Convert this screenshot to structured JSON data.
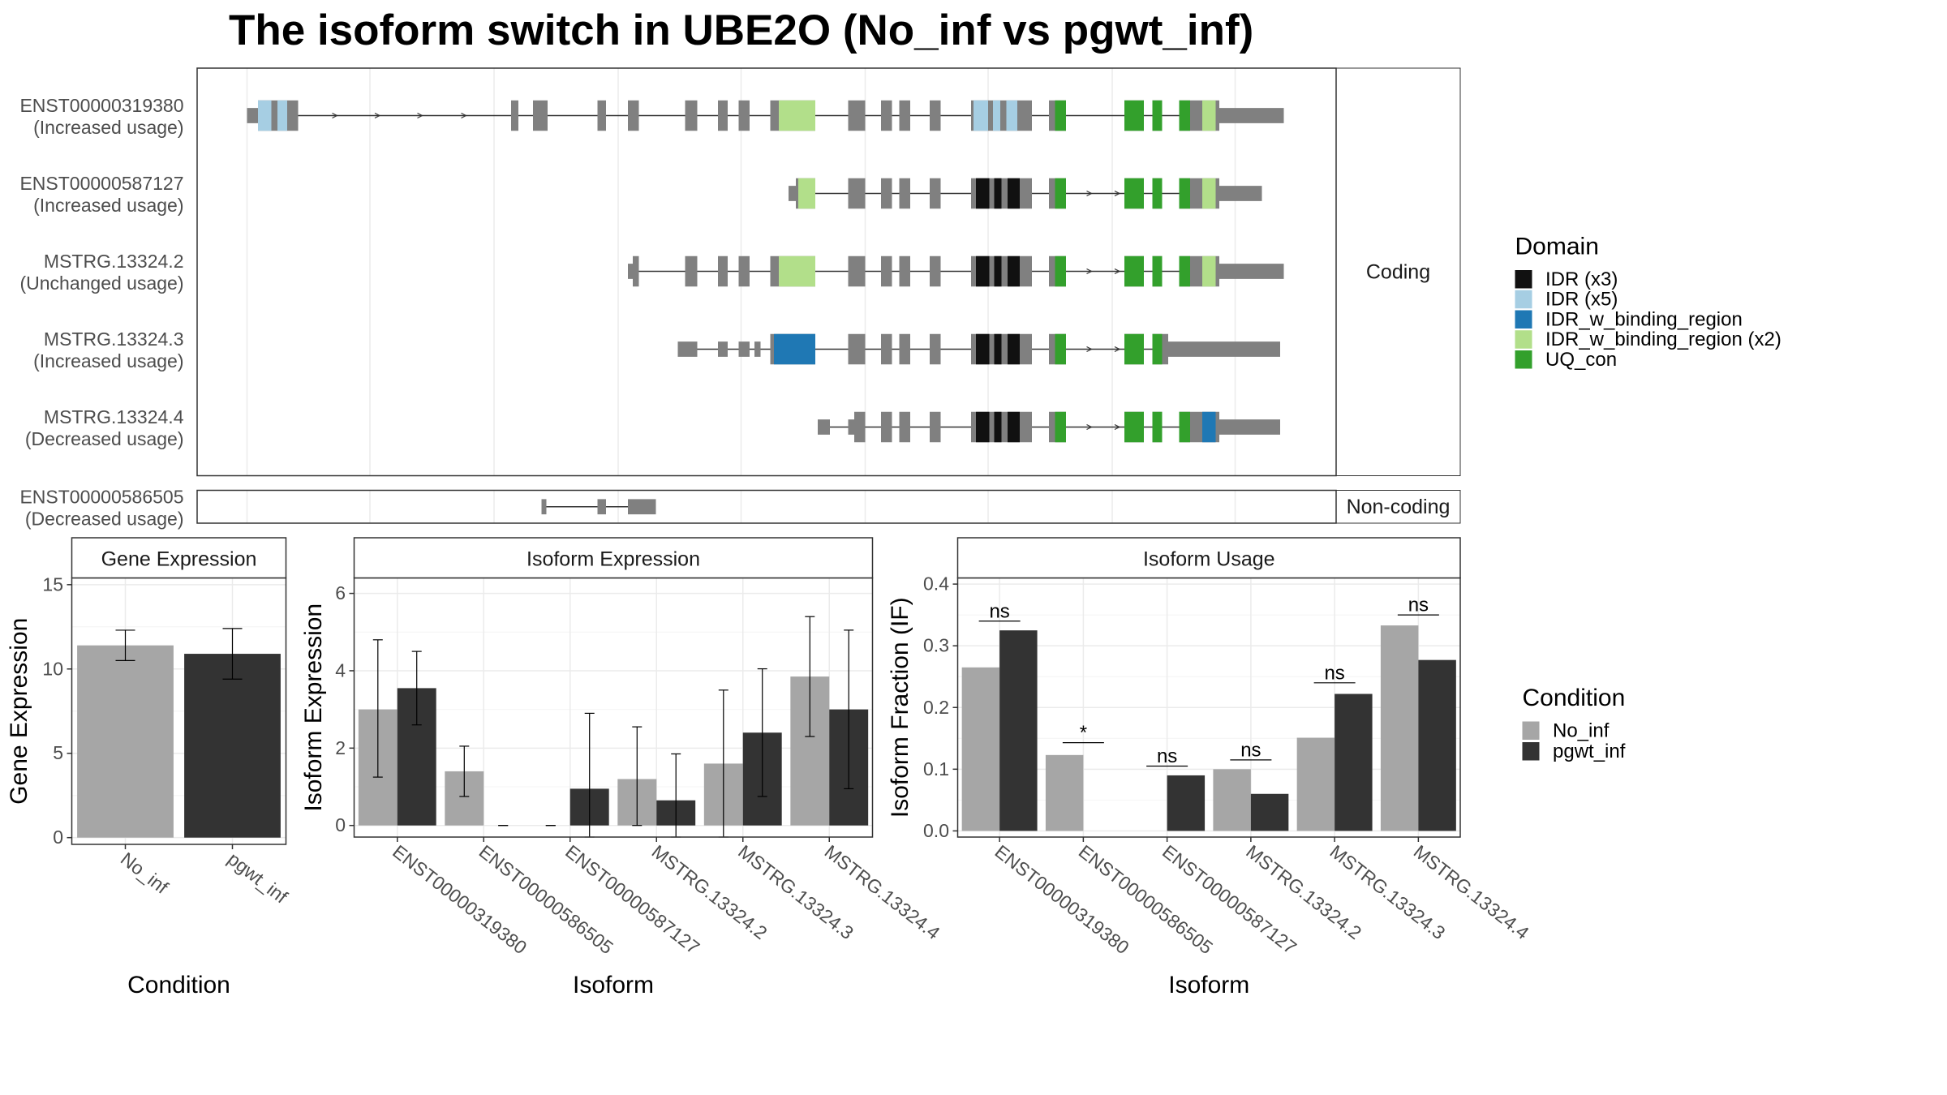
{
  "title": "The isoform switch in UBE2O (No_inf vs pgwt_inf)",
  "colors": {
    "grid": "#ebebeb",
    "feature_gray": "#808080",
    "No_inf": "#a6a6a6",
    "pgwt_inf": "#333333",
    "IDR (x3)": "#111111",
    "IDR (x5)": "#a6cee3",
    "IDR_w_binding_region": "#1f78b4",
    "IDR_w_binding_region (x2)": "#b2df8a",
    "UQ_con": "#33a02c"
  },
  "structure": {
    "coding_label": "Coding",
    "noncoding_label": "Non-coding",
    "coding": [
      {
        "id": "ENST00000319380",
        "usage": "(Increased usage)",
        "exons": [
          [
            203,
            212,
            "u"
          ],
          [
            212,
            245,
            "c"
          ],
          [
            420,
            426,
            "c"
          ],
          [
            438,
            450,
            "c"
          ],
          [
            491,
            498,
            "c"
          ],
          [
            516,
            525,
            "c"
          ],
          [
            563,
            573,
            "c"
          ],
          [
            590,
            598,
            "c"
          ],
          [
            607,
            616,
            "c"
          ],
          [
            633,
            640,
            "c"
          ],
          [
            640,
            670,
            "c"
          ],
          [
            697,
            711,
            "c"
          ],
          [
            724,
            733,
            "c"
          ],
          [
            739,
            748,
            "c"
          ],
          [
            764,
            773,
            "c"
          ],
          [
            798,
            848,
            "c"
          ],
          [
            862,
            876,
            "c"
          ],
          [
            924,
            940,
            "c"
          ],
          [
            947,
            955,
            "c"
          ],
          [
            969,
            1002,
            "c"
          ],
          [
            1002,
            1055,
            "u"
          ]
        ],
        "domains": [
          [
            212,
            223,
            "IDR (x5)"
          ],
          [
            228,
            236,
            "IDR (x5)"
          ],
          [
            640,
            670,
            "IDR_w_binding_region (x2)"
          ],
          [
            800,
            812,
            "IDR (x5)"
          ],
          [
            816,
            822,
            "IDR (x5)"
          ],
          [
            827,
            836,
            "IDR (x5)"
          ],
          [
            867,
            876,
            "UQ_con"
          ],
          [
            924,
            940,
            "UQ_con"
          ],
          [
            947,
            955,
            "UQ_con"
          ],
          [
            969,
            978,
            "UQ_con"
          ],
          [
            988,
            999,
            "IDR_w_binding_region (x2)"
          ]
        ],
        "arrows": [
          277,
          312,
          347,
          383
        ]
      },
      {
        "id": "ENST00000587127",
        "usage": "(Increased usage)",
        "exons": [
          [
            648,
            654,
            "u"
          ],
          [
            654,
            670,
            "c"
          ],
          [
            697,
            711,
            "c"
          ],
          [
            724,
            733,
            "c"
          ],
          [
            739,
            748,
            "c"
          ],
          [
            764,
            773,
            "c"
          ],
          [
            798,
            848,
            "c"
          ],
          [
            862,
            876,
            "c"
          ],
          [
            924,
            940,
            "c"
          ],
          [
            947,
            955,
            "c"
          ],
          [
            969,
            1002,
            "c"
          ],
          [
            1002,
            1037,
            "u"
          ]
        ],
        "domains": [
          [
            656,
            670,
            "IDR_w_binding_region (x2)"
          ],
          [
            802,
            813,
            "IDR (x3)"
          ],
          [
            817,
            823,
            "IDR (x3)"
          ],
          [
            828,
            838,
            "IDR (x3)"
          ],
          [
            867,
            876,
            "UQ_con"
          ],
          [
            924,
            940,
            "UQ_con"
          ],
          [
            947,
            955,
            "UQ_con"
          ],
          [
            969,
            978,
            "UQ_con"
          ],
          [
            988,
            999,
            "IDR_w_binding_region (x2)"
          ]
        ],
        "arrows": [
          897,
          920
        ]
      },
      {
        "id": "MSTRG.13324.2",
        "usage": "(Unchanged usage)",
        "exons": [
          [
            516,
            520,
            "u"
          ],
          [
            520,
            525,
            "c"
          ],
          [
            563,
            573,
            "c"
          ],
          [
            590,
            598,
            "c"
          ],
          [
            607,
            616,
            "c"
          ],
          [
            633,
            640,
            "c"
          ],
          [
            640,
            670,
            "c"
          ],
          [
            697,
            711,
            "c"
          ],
          [
            724,
            733,
            "c"
          ],
          [
            739,
            748,
            "c"
          ],
          [
            764,
            773,
            "c"
          ],
          [
            798,
            848,
            "c"
          ],
          [
            862,
            876,
            "c"
          ],
          [
            924,
            940,
            "c"
          ],
          [
            947,
            955,
            "c"
          ],
          [
            969,
            1002,
            "c"
          ],
          [
            1002,
            1055,
            "u"
          ]
        ],
        "domains": [
          [
            640,
            670,
            "IDR_w_binding_region (x2)"
          ],
          [
            802,
            813,
            "IDR (x3)"
          ],
          [
            817,
            823,
            "IDR (x3)"
          ],
          [
            828,
            838,
            "IDR (x3)"
          ],
          [
            867,
            876,
            "UQ_con"
          ],
          [
            924,
            940,
            "UQ_con"
          ],
          [
            947,
            955,
            "UQ_con"
          ],
          [
            969,
            978,
            "UQ_con"
          ],
          [
            988,
            999,
            "IDR_w_binding_region (x2)"
          ]
        ],
        "arrows": [
          897,
          920
        ]
      },
      {
        "id": "MSTRG.13324.3",
        "usage": "(Increased usage)",
        "exons": [
          [
            557,
            573,
            "u"
          ],
          [
            590,
            598,
            "u"
          ],
          [
            607,
            616,
            "u"
          ],
          [
            620,
            625,
            "u"
          ],
          [
            633,
            670,
            "c"
          ],
          [
            697,
            711,
            "c"
          ],
          [
            724,
            733,
            "c"
          ],
          [
            739,
            748,
            "c"
          ],
          [
            764,
            773,
            "c"
          ],
          [
            798,
            848,
            "c"
          ],
          [
            862,
            876,
            "c"
          ],
          [
            924,
            940,
            "c"
          ],
          [
            947,
            955,
            "c"
          ],
          [
            955,
            960,
            "c"
          ],
          [
            960,
            1052,
            "u"
          ]
        ],
        "domains": [
          [
            636,
            670,
            "IDR_w_binding_region"
          ],
          [
            802,
            813,
            "IDR (x3)"
          ],
          [
            817,
            823,
            "IDR (x3)"
          ],
          [
            828,
            838,
            "IDR (x3)"
          ],
          [
            867,
            876,
            "UQ_con"
          ],
          [
            924,
            940,
            "UQ_con"
          ],
          [
            947,
            955,
            "UQ_con"
          ]
        ],
        "arrows": [
          897,
          920
        ]
      },
      {
        "id": "MSTRG.13324.4",
        "usage": "(Decreased usage)",
        "exons": [
          [
            672,
            682,
            "u"
          ],
          [
            697,
            702,
            "u"
          ],
          [
            702,
            711,
            "c"
          ],
          [
            724,
            733,
            "c"
          ],
          [
            739,
            748,
            "c"
          ],
          [
            764,
            773,
            "c"
          ],
          [
            798,
            848,
            "c"
          ],
          [
            862,
            876,
            "c"
          ],
          [
            924,
            940,
            "c"
          ],
          [
            947,
            955,
            "c"
          ],
          [
            969,
            1002,
            "c"
          ],
          [
            1002,
            1052,
            "u"
          ]
        ],
        "domains": [
          [
            802,
            813,
            "IDR (x3)"
          ],
          [
            817,
            823,
            "IDR (x3)"
          ],
          [
            828,
            838,
            "IDR (x3)"
          ],
          [
            867,
            876,
            "UQ_con"
          ],
          [
            924,
            940,
            "UQ_con"
          ],
          [
            947,
            955,
            "UQ_con"
          ],
          [
            969,
            978,
            "UQ_con"
          ],
          [
            988,
            999,
            "IDR_w_binding_region"
          ]
        ],
        "arrows": [
          897,
          920
        ]
      }
    ],
    "noncoding": [
      {
        "id": "ENST00000586505",
        "usage": "(Decreased usage)",
        "exons": [
          [
            445,
            449,
            "u"
          ],
          [
            491,
            498,
            "u"
          ],
          [
            516,
            539,
            "u"
          ]
        ],
        "domains": [],
        "arrows": []
      }
    ]
  },
  "domain_legend": {
    "title": "Domain",
    "items": [
      "IDR (x3)",
      "IDR (x5)",
      "IDR_w_binding_region",
      "IDR_w_binding_region (x2)",
      "UQ_con"
    ]
  },
  "condition_legend": {
    "title": "Condition",
    "items": [
      "No_inf",
      "pgwt_inf"
    ]
  },
  "chart_data": [
    {
      "type": "bar",
      "strip": "Gene Expression",
      "xlabel": "Condition",
      "ylabel": "Gene Expression",
      "ylim": [
        -0.4,
        15.4
      ],
      "yticks": [
        0,
        5,
        10,
        15
      ],
      "categories": [
        "No_inf",
        "pgwt_inf"
      ],
      "values": [
        11.4,
        10.9
      ],
      "errors": [
        [
          10.5,
          12.3
        ],
        [
          9.4,
          12.4
        ]
      ]
    },
    {
      "type": "bar",
      "strip": "Isoform Expression",
      "xlabel": "Isoform",
      "ylabel": "Isoform Expression",
      "ylim": [
        -0.3,
        6.4
      ],
      "yticks": [
        0,
        2,
        4,
        6
      ],
      "categories": [
        "ENST00000319380",
        "ENST00000586505",
        "ENST00000587127",
        "MSTRG.13324.2",
        "MSTRG.13324.3",
        "MSTRG.13324.4"
      ],
      "series": [
        {
          "name": "No_inf",
          "values": [
            3.0,
            1.4,
            0.0,
            1.2,
            1.6,
            3.85
          ],
          "errors": [
            [
              1.25,
              4.8
            ],
            [
              0.75,
              2.05
            ],
            [
              0.0,
              0.0
            ],
            [
              0.0,
              2.55
            ],
            [
              -0.3,
              3.5
            ],
            [
              2.3,
              5.4
            ]
          ]
        },
        {
          "name": "pgwt_inf",
          "values": [
            3.55,
            0.0,
            0.95,
            0.65,
            2.4,
            3.0
          ],
          "errors": [
            [
              2.6,
              4.5
            ],
            [
              0.0,
              0.0
            ],
            [
              -0.3,
              2.9
            ],
            [
              -0.3,
              1.85
            ],
            [
              0.75,
              4.05
            ],
            [
              0.95,
              5.05
            ]
          ]
        }
      ]
    },
    {
      "type": "bar",
      "strip": "Isoform Usage",
      "xlabel": "Isoform",
      "ylabel": "Isoform Fraction (IF)",
      "ylim": [
        -0.01,
        0.41
      ],
      "yticks": [
        0.0,
        0.1,
        0.2,
        0.3,
        0.4
      ],
      "categories": [
        "ENST00000319380",
        "ENST00000586505",
        "ENST00000587127",
        "MSTRG.13324.2",
        "MSTRG.13324.3",
        "MSTRG.13324.4"
      ],
      "series": [
        {
          "name": "No_inf",
          "values": [
            0.265,
            0.123,
            0.0,
            0.1,
            0.151,
            0.333
          ]
        },
        {
          "name": "pgwt_inf",
          "values": [
            0.325,
            0.0,
            0.09,
            0.06,
            0.222,
            0.277
          ]
        }
      ],
      "significance": [
        "ns",
        "*",
        "ns",
        "ns",
        "ns",
        "ns"
      ],
      "sig_y": [
        0.34,
        0.143,
        0.105,
        0.115,
        0.24,
        0.35
      ]
    }
  ]
}
